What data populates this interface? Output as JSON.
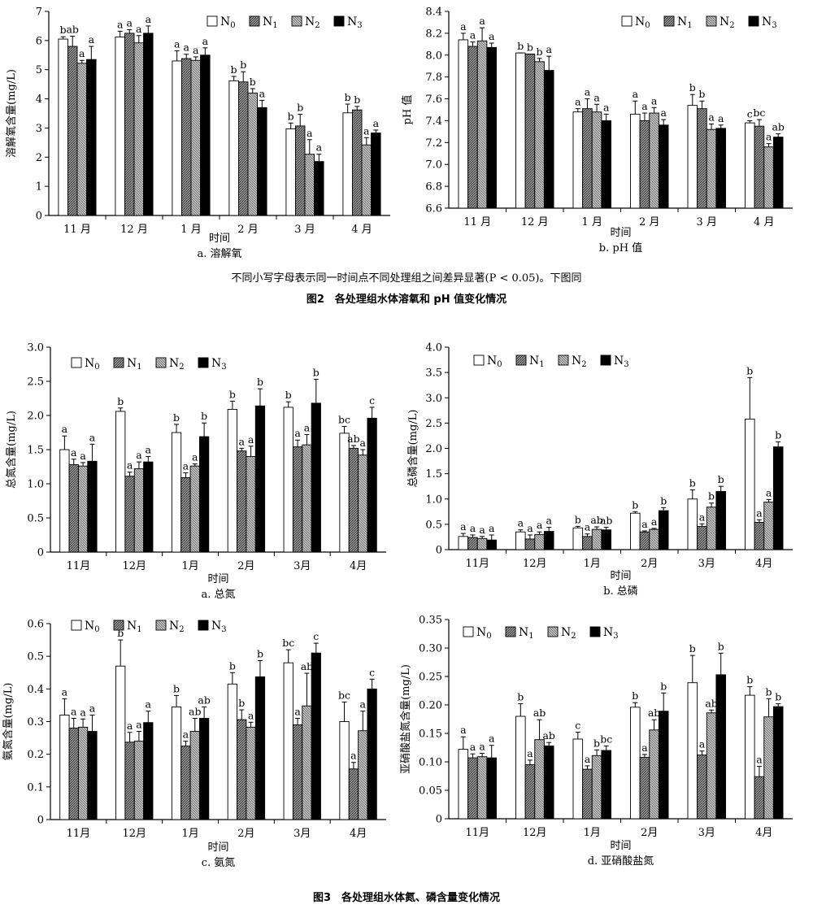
{
  "captions": {
    "note": "不同小写字母表示同一时间点不同处理组之间差异显著(P < 0.05)。下图同",
    "fig2": "图2　各处理组水体溶氧和 pH 值变化情况",
    "fig3": "图3　各处理组水体氮、磷含量变化情况"
  },
  "legend_names": [
    "N0",
    "N1",
    "N2",
    "N3"
  ],
  "chart_data": [
    {
      "id": "a",
      "type": "bar",
      "ylabel": "溶解氧含量(mg/L)",
      "xlabel": "时间",
      "caption": "a. 溶解氧",
      "categories": [
        "11 月",
        "12 月",
        "1 月",
        "2 月",
        "3 月",
        "4 月"
      ],
      "ylim": [
        0,
        7
      ],
      "yticks": [
        "0",
        "1",
        "2",
        "3",
        "4",
        "5",
        "6",
        "7"
      ],
      "ytick_vals": [
        0,
        1,
        2,
        3,
        4,
        5,
        6,
        7
      ],
      "legend_position": "top-right",
      "series": [
        {
          "name": "N0",
          "values": [
            6.05,
            6.12,
            5.3,
            4.62,
            2.97,
            3.52
          ],
          "errors": [
            0.08,
            0.2,
            0.35,
            0.15,
            0.2,
            0.3
          ],
          "sig": [
            "b",
            "a",
            "a",
            "b",
            "b",
            "b"
          ]
        },
        {
          "name": "N1",
          "values": [
            5.8,
            6.25,
            5.38,
            4.58,
            3.07,
            3.62
          ],
          "errors": [
            0.35,
            0.12,
            0.15,
            0.35,
            0.4,
            0.12
          ],
          "sig": [
            "ab",
            "a",
            "a",
            "b",
            "b",
            "b"
          ]
        },
        {
          "name": "N2",
          "values": [
            5.22,
            5.92,
            5.32,
            4.2,
            2.1,
            2.42
          ],
          "errors": [
            0.1,
            0.25,
            0.12,
            0.15,
            0.5,
            0.25
          ],
          "sig": [
            "a",
            "a",
            "a",
            "b",
            "a",
            "a"
          ]
        },
        {
          "name": "N3",
          "values": [
            5.35,
            6.25,
            5.5,
            3.7,
            1.85,
            2.83
          ],
          "errors": [
            0.45,
            0.25,
            0.25,
            0.25,
            0.25,
            0.1
          ],
          "sig": [
            "a",
            "a",
            "a",
            "a",
            "a",
            "a"
          ]
        }
      ]
    },
    {
      "id": "b",
      "type": "bar",
      "ylabel": "pH 值",
      "xlabel": "时间",
      "caption": "b. pH 值",
      "categories": [
        "11 月",
        "12 月",
        "1 月",
        "2 月",
        "3 月",
        "4 月"
      ],
      "ylim": [
        6.6,
        8.4
      ],
      "yticks": [
        "6.6",
        "6.8",
        "7.0",
        "7.2",
        "7.4",
        "7.6",
        "7.8",
        "8.0",
        "8.2",
        "8.4"
      ],
      "ytick_vals": [
        6.6,
        6.8,
        7.0,
        7.2,
        7.4,
        7.6,
        7.8,
        8.0,
        8.2,
        8.4
      ],
      "legend_position": "top-right",
      "series": [
        {
          "name": "N0",
          "values": [
            8.14,
            8.02,
            7.48,
            7.46,
            7.54,
            7.38
          ],
          "errors": [
            0.06,
            0.0,
            0.03,
            0.12,
            0.1,
            0.02
          ],
          "sig": [
            "a",
            "b",
            "a",
            "a",
            "b",
            "c"
          ]
        },
        {
          "name": "N1",
          "values": [
            8.08,
            8.01,
            7.51,
            7.4,
            7.51,
            7.35
          ],
          "errors": [
            0.04,
            0.0,
            0.09,
            0.07,
            0.07,
            0.06
          ],
          "sig": [
            "a",
            "b",
            "a",
            "a",
            "b",
            "bc"
          ]
        },
        {
          "name": "N2",
          "values": [
            8.13,
            7.94,
            7.48,
            7.47,
            7.32,
            7.16
          ],
          "errors": [
            0.12,
            0.03,
            0.07,
            0.05,
            0.05,
            0.03
          ],
          "sig": [
            "a",
            "b",
            "a",
            "a",
            "a",
            "a"
          ]
        },
        {
          "name": "N3",
          "values": [
            8.07,
            7.86,
            7.4,
            7.36,
            7.33,
            7.25
          ],
          "errors": [
            0.04,
            0.13,
            0.06,
            0.05,
            0.03,
            0.03
          ],
          "sig": [
            "a",
            "a",
            "a",
            "a",
            "a",
            "ab"
          ]
        }
      ]
    },
    {
      "id": "c1",
      "type": "bar",
      "ylabel": "总氮含量(mg/L)",
      "xlabel": "时间",
      "caption": "a. 总氮",
      "categories": [
        "11月",
        "12月",
        "1月",
        "2月",
        "3月",
        "4月"
      ],
      "ylim": [
        0,
        3.0
      ],
      "yticks": [
        "0",
        "0.5",
        "1.0",
        "1.5",
        "2.0",
        "2.5",
        "3.0"
      ],
      "ytick_vals": [
        0,
        0.5,
        1.0,
        1.5,
        2.0,
        2.5,
        3.0
      ],
      "legend_position": "top-left",
      "series": [
        {
          "name": "N0",
          "values": [
            1.5,
            2.06,
            1.75,
            2.09,
            2.12,
            1.74
          ],
          "errors": [
            0.2,
            0.05,
            0.12,
            0.12,
            0.08,
            0.1
          ],
          "sig": [
            "a",
            "b",
            "b",
            "b",
            "b",
            "bc"
          ]
        },
        {
          "name": "N1",
          "values": [
            1.28,
            1.11,
            1.09,
            1.48,
            1.54,
            1.52
          ],
          "errors": [
            0.08,
            0.06,
            0.07,
            0.04,
            0.1,
            0.04
          ],
          "sig": [
            "a",
            "a",
            "a",
            "a",
            "a",
            "ab"
          ]
        },
        {
          "name": "N2",
          "values": [
            1.26,
            1.22,
            1.26,
            1.4,
            1.57,
            1.42
          ],
          "errors": [
            0.05,
            0.1,
            0.03,
            0.15,
            0.15,
            0.08
          ],
          "sig": [
            "a",
            "a",
            "a",
            "a",
            "a",
            "a"
          ]
        },
        {
          "name": "N3",
          "values": [
            1.33,
            1.32,
            1.69,
            2.14,
            2.18,
            1.96
          ],
          "errors": [
            0.25,
            0.08,
            0.2,
            0.25,
            0.35,
            0.16
          ],
          "sig": [
            "a",
            "a",
            "b",
            "b",
            "b",
            "c"
          ]
        }
      ]
    },
    {
      "id": "d1",
      "type": "bar",
      "ylabel": "总磷含量(mg/L)",
      "xlabel": "时间",
      "caption": "b. 总磷",
      "categories": [
        "11月",
        "12月",
        "1月",
        "2月",
        "3月",
        "4月"
      ],
      "ylim": [
        0,
        4.0
      ],
      "yticks": [
        "0",
        "0.5",
        "1.0",
        "1.5",
        "2.0",
        "2.5",
        "3.0",
        "3.5",
        "4.0"
      ],
      "ytick_vals": [
        0,
        0.5,
        1.0,
        1.5,
        2.0,
        2.5,
        3.0,
        3.5,
        4.0
      ],
      "legend_position": "top-left",
      "series": [
        {
          "name": "N0",
          "values": [
            0.26,
            0.35,
            0.43,
            0.72,
            1.0,
            2.58
          ],
          "errors": [
            0.06,
            0.04,
            0.03,
            0.03,
            0.18,
            0.82
          ],
          "sig": [
            "a",
            "a",
            "b",
            "b",
            "b",
            "b"
          ]
        },
        {
          "name": "N1",
          "values": [
            0.24,
            0.21,
            0.26,
            0.35,
            0.46,
            0.54
          ],
          "errors": [
            0.05,
            0.08,
            0.05,
            0.02,
            0.05,
            0.05
          ],
          "sig": [
            "a",
            "a",
            "a",
            "a",
            "a",
            "a"
          ]
        },
        {
          "name": "N2",
          "values": [
            0.22,
            0.3,
            0.4,
            0.4,
            0.84,
            0.94
          ],
          "errors": [
            0.04,
            0.05,
            0.05,
            0.02,
            0.08,
            0.05
          ],
          "sig": [
            "a",
            "a",
            "ab",
            "a",
            "b",
            "a"
          ]
        },
        {
          "name": "N3",
          "values": [
            0.19,
            0.36,
            0.39,
            0.77,
            1.15,
            2.03
          ],
          "errors": [
            0.1,
            0.08,
            0.05,
            0.06,
            0.1,
            0.1
          ],
          "sig": [
            "a",
            "a",
            "ab",
            "b",
            "b",
            "b"
          ]
        }
      ]
    },
    {
      "id": "c",
      "type": "bar",
      "ylabel": "氨氮含量(mg/L)",
      "xlabel": "时间",
      "caption": "c. 氨氮",
      "categories": [
        "11月",
        "12月",
        "1月",
        "2月",
        "3月",
        "4月"
      ],
      "ylim": [
        0,
        0.6
      ],
      "yticks": [
        "0",
        "0.1",
        "0.2",
        "0.3",
        "0.4",
        "0.5",
        "0.6"
      ],
      "ytick_vals": [
        0,
        0.1,
        0.2,
        0.3,
        0.4,
        0.5,
        0.6
      ],
      "legend_position": "top-left",
      "series": [
        {
          "name": "N0",
          "values": [
            0.32,
            0.47,
            0.345,
            0.415,
            0.48,
            0.3
          ],
          "errors": [
            0.05,
            0.08,
            0.035,
            0.035,
            0.04,
            0.06
          ],
          "sig": [
            "a",
            "b",
            "b",
            "b",
            "bc",
            "bc"
          ]
        },
        {
          "name": "N1",
          "values": [
            0.28,
            0.237,
            0.225,
            0.306,
            0.29,
            0.155
          ],
          "errors": [
            0.03,
            0.03,
            0.015,
            0.03,
            0.02,
            0.02
          ],
          "sig": [
            "a",
            "a",
            "a",
            "b",
            "a",
            "a"
          ]
        },
        {
          "name": "N2",
          "values": [
            0.283,
            0.24,
            0.27,
            0.283,
            0.348,
            0.272
          ],
          "errors": [
            0.025,
            0.03,
            0.04,
            0.015,
            0.1,
            0.06
          ],
          "sig": [
            "a",
            "a",
            "ab",
            "a",
            "ab",
            "a"
          ]
        },
        {
          "name": "N3",
          "values": [
            0.27,
            0.297,
            0.31,
            0.437,
            0.51,
            0.4
          ],
          "errors": [
            0.05,
            0.035,
            0.035,
            0.05,
            0.03,
            0.03
          ],
          "sig": [
            "a",
            "a",
            "ab",
            "b",
            "c",
            "c"
          ]
        }
      ]
    },
    {
      "id": "d",
      "type": "bar",
      "ylabel": "亚硝酸盐氮含量(mg/L)",
      "xlabel": "时间",
      "caption": "d. 亚硝酸盐氮",
      "categories": [
        "11月",
        "12月",
        "1月",
        "2月",
        "3月",
        "4月"
      ],
      "ylim": [
        0,
        0.35
      ],
      "yticks": [
        "0",
        "0.05",
        "0.10",
        "0.15",
        "0.20",
        "0.25",
        "0.30",
        "0.35"
      ],
      "ytick_vals": [
        0,
        0.05,
        0.1,
        0.15,
        0.2,
        0.25,
        0.3,
        0.35
      ],
      "legend_position": "top-left",
      "series": [
        {
          "name": "N0",
          "values": [
            0.122,
            0.18,
            0.14,
            0.196,
            0.239,
            0.217
          ],
          "errors": [
            0.022,
            0.022,
            0.012,
            0.008,
            0.048,
            0.015
          ],
          "sig": [
            "a",
            "b",
            "c",
            "b",
            "b",
            "b"
          ]
        },
        {
          "name": "N1",
          "values": [
            0.107,
            0.095,
            0.087,
            0.108,
            0.112,
            0.074
          ],
          "errors": [
            0.007,
            0.008,
            0.006,
            0.005,
            0.007,
            0.018
          ],
          "sig": [
            "a",
            "a",
            "a",
            "a",
            "a",
            "a"
          ]
        },
        {
          "name": "N2",
          "values": [
            0.109,
            0.139,
            0.111,
            0.156,
            0.186,
            0.179
          ],
          "errors": [
            0.006,
            0.035,
            0.01,
            0.018,
            0.005,
            0.032
          ],
          "sig": [
            "a",
            "ab",
            "b",
            "ab",
            "ab",
            "b"
          ]
        },
        {
          "name": "N3",
          "values": [
            0.107,
            0.128,
            0.12,
            0.189,
            0.253,
            0.197
          ],
          "errors": [
            0.022,
            0.006,
            0.008,
            0.032,
            0.038,
            0.005
          ],
          "sig": [
            "a",
            "ab",
            "bc",
            "b",
            "b",
            "b"
          ]
        }
      ]
    }
  ]
}
